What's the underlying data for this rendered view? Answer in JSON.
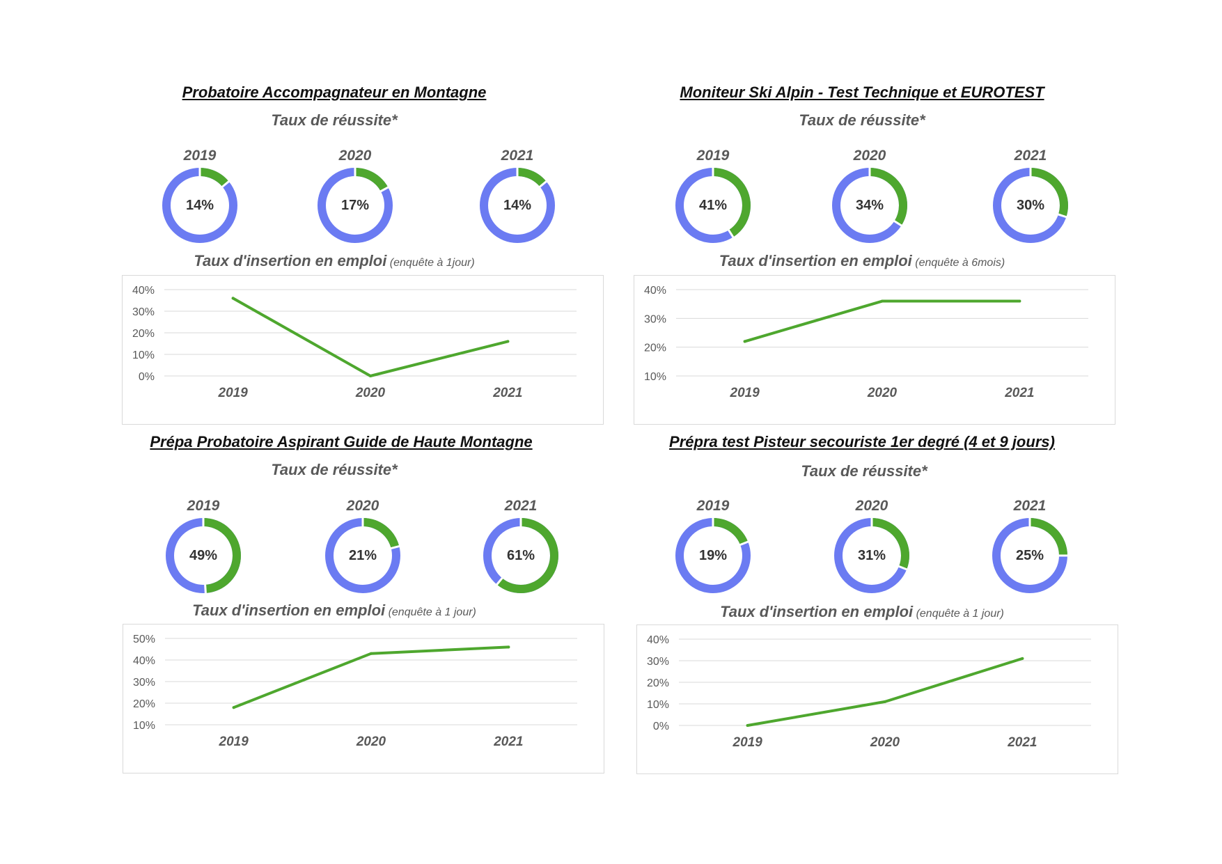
{
  "colors": {
    "success": "#4ea72e",
    "rest": "#6b7bf2",
    "line": "#4ea72e",
    "grid": "#d9d9d9"
  },
  "panels": [
    {
      "title": "Probatoire Accompagnateur en Montagne",
      "subtitle": "Taux de réussite*",
      "donuts": [
        {
          "year": "2019",
          "label": "14%",
          "value": 14
        },
        {
          "year": "2020",
          "label": "17%",
          "value": 17
        },
        {
          "year": "2021",
          "label": "14%",
          "value": 14
        }
      ],
      "insertion_title": "Taux d'insertion en emploi",
      "insertion_note": "(enquête à 1jour)"
    },
    {
      "title": "Moniteur Ski Alpin - Test Technique et EUROTEST",
      "subtitle": "Taux de réussite*",
      "donuts": [
        {
          "year": "2019",
          "label": "41%",
          "value": 41
        },
        {
          "year": "2020",
          "label": "34%",
          "value": 34
        },
        {
          "year": "2021",
          "label": "30%",
          "value": 30
        }
      ],
      "insertion_title": "Taux d'insertion en emploi",
      "insertion_note": "(enquête à 6mois)"
    },
    {
      "title": "Prépa Probatoire Aspirant Guide de Haute Montagne",
      "subtitle": "Taux de réussite*",
      "donuts": [
        {
          "year": "2019",
          "label": "49%",
          "value": 49
        },
        {
          "year": "2020",
          "label": "21%",
          "value": 21
        },
        {
          "year": "2021",
          "label": "61%",
          "value": 61
        }
      ],
      "insertion_title": "Taux d'insertion en emploi",
      "insertion_note": "(enquête à 1 jour)"
    },
    {
      "title": "Prépra test Pisteur secouriste 1er degré (4 et 9 jours)",
      "subtitle": "Taux de réussite*",
      "donuts": [
        {
          "year": "2019",
          "label": "19%",
          "value": 19
        },
        {
          "year": "2020",
          "label": "31%",
          "value": 31
        },
        {
          "year": "2021",
          "label": "25%",
          "value": 25
        }
      ],
      "insertion_title": "Taux d'insertion en emploi",
      "insertion_note": "(enquête à 1 jour)"
    }
  ],
  "chart_data": [
    {
      "type": "pie",
      "title": "Probatoire Accompagnateur en Montagne",
      "subtitle": "Taux de réussite*",
      "categories": [
        "2019",
        "2020",
        "2021"
      ],
      "values": [
        14,
        17,
        14
      ]
    },
    {
      "type": "line",
      "title": "Taux d'insertion en emploi",
      "note": "(enquête à 1jour)",
      "categories": [
        "2019",
        "2020",
        "2021"
      ],
      "values": [
        36,
        0,
        16
      ],
      "ylim": [
        0,
        40
      ],
      "yticks": [
        "0%",
        "10%",
        "20%",
        "30%",
        "40%"
      ],
      "grid": true
    },
    {
      "type": "pie",
      "title": "Moniteur Ski Alpin - Test Technique et EUROTEST",
      "subtitle": "Taux de réussite*",
      "categories": [
        "2019",
        "2020",
        "2021"
      ],
      "values": [
        41,
        34,
        30
      ]
    },
    {
      "type": "line",
      "title": "Taux d'insertion en emploi",
      "note": "(enquête à 6mois)",
      "categories": [
        "2019",
        "2020",
        "2021"
      ],
      "values": [
        22,
        36,
        36
      ],
      "ylim": [
        10,
        40
      ],
      "yticks": [
        "10%",
        "20%",
        "30%",
        "40%"
      ],
      "grid": true
    },
    {
      "type": "pie",
      "title": "Prépa Probatoire Aspirant Guide de Haute Montagne",
      "subtitle": "Taux de réussite*",
      "categories": [
        "2019",
        "2020",
        "2021"
      ],
      "values": [
        49,
        21,
        61
      ]
    },
    {
      "type": "line",
      "title": "Taux d'insertion en emploi",
      "note": "(enquête à 1 jour)",
      "categories": [
        "2019",
        "2020",
        "2021"
      ],
      "values": [
        18,
        43,
        46
      ],
      "ylim": [
        10,
        50
      ],
      "yticks": [
        "10%",
        "20%",
        "30%",
        "40%",
        "50%"
      ],
      "grid": true
    },
    {
      "type": "pie",
      "title": "Prépra test Pisteur secouriste 1er degré (4 et 9 jours)",
      "subtitle": "Taux de réussite*",
      "categories": [
        "2019",
        "2020",
        "2021"
      ],
      "values": [
        19,
        31,
        25
      ]
    },
    {
      "type": "line",
      "title": "Taux d'insertion en emploi",
      "note": "(enquête à 1 jour)",
      "categories": [
        "2019",
        "2020",
        "2021"
      ],
      "values": [
        0,
        11,
        31
      ],
      "ylim": [
        0,
        40
      ],
      "yticks": [
        "0%",
        "10%",
        "20%",
        "30%",
        "40%"
      ],
      "grid": true
    }
  ]
}
